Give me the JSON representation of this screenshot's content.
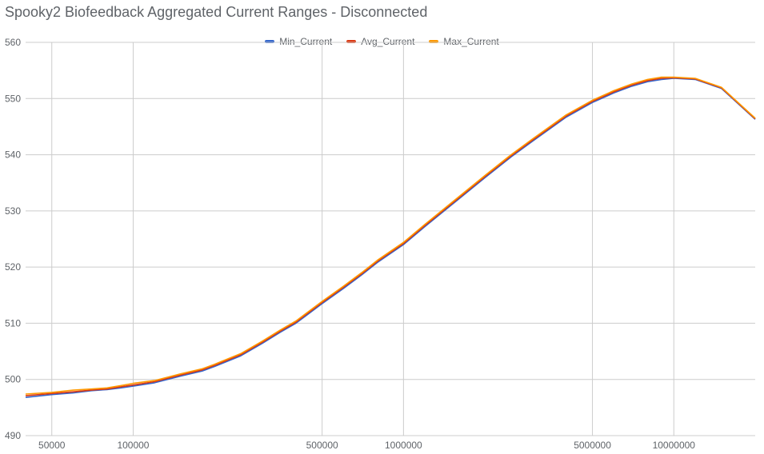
{
  "chart_data": {
    "type": "line",
    "title": "Spooky2 Biofeedback Aggregated Current Ranges - Disconnected",
    "xlabel": "",
    "ylabel": "",
    "x_scale": "log",
    "xlim": [
      40000,
      20000000
    ],
    "ylim": [
      490,
      560
    ],
    "x_ticks": [
      "50000",
      "100000",
      "500000",
      "1000000",
      "5000000",
      "10000000"
    ],
    "y_ticks": [
      "490",
      "500",
      "510",
      "520",
      "530",
      "540",
      "550",
      "560"
    ],
    "grid": true,
    "legend_position": "top-center",
    "x": [
      40000,
      50000,
      60000,
      70000,
      80000,
      90000,
      100000,
      120000,
      150000,
      180000,
      200000,
      250000,
      300000,
      350000,
      400000,
      500000,
      600000,
      700000,
      800000,
      1000000,
      1200000,
      1500000,
      2000000,
      2500000,
      3000000,
      4000000,
      5000000,
      6000000,
      7000000,
      8000000,
      9000000,
      10000000,
      12000000,
      15000000,
      20000000
    ],
    "series": [
      {
        "name": "Min_Current",
        "color": "#3366cc",
        "values": [
          496.8,
          497.3,
          497.6,
          498.0,
          498.2,
          498.5,
          498.8,
          499.4,
          500.6,
          501.5,
          502.3,
          504.2,
          506.4,
          508.4,
          510.0,
          513.5,
          516.2,
          518.6,
          520.8,
          524.0,
          527.2,
          531.0,
          535.9,
          539.6,
          542.4,
          546.7,
          549.3,
          551.0,
          552.2,
          553.0,
          553.4,
          553.6,
          553.4,
          551.8,
          546.3
        ]
      },
      {
        "name": "Avg_Current",
        "color": "#dc3912",
        "values": [
          497.1,
          497.5,
          497.8,
          498.1,
          498.3,
          498.7,
          499.0,
          499.6,
          500.8,
          501.7,
          502.5,
          504.4,
          506.6,
          508.6,
          510.2,
          513.7,
          516.4,
          518.8,
          521.0,
          524.2,
          527.4,
          531.2,
          536.1,
          539.8,
          542.6,
          546.9,
          549.5,
          551.2,
          552.4,
          553.2,
          553.6,
          553.7,
          553.5,
          551.9,
          546.4
        ]
      },
      {
        "name": "Max_Current",
        "color": "#ff9900",
        "values": [
          497.4,
          497.7,
          498.1,
          498.3,
          498.5,
          498.9,
          499.3,
          499.8,
          501.0,
          501.9,
          502.7,
          504.6,
          506.8,
          508.8,
          510.4,
          513.9,
          516.6,
          519.0,
          521.2,
          524.4,
          527.6,
          531.4,
          536.3,
          540.0,
          542.8,
          547.1,
          549.7,
          551.4,
          552.6,
          553.4,
          553.8,
          553.8,
          553.6,
          552.0,
          546.5
        ]
      }
    ]
  }
}
